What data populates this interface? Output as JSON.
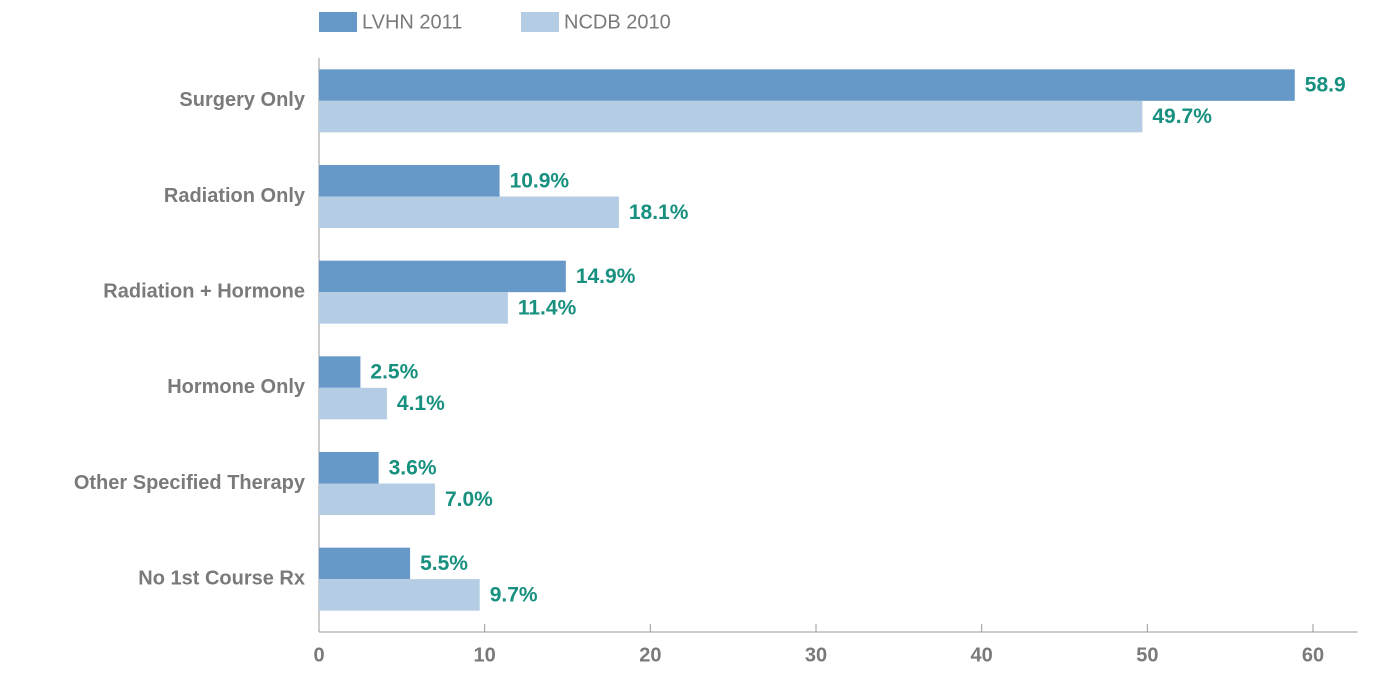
{
  "chart_data": {
    "type": "bar",
    "orientation": "horizontal",
    "categories": [
      "Surgery Only",
      "Radiation Only",
      "Radiation + Hormone",
      "Hormone Only",
      "Other Specified Therapy",
      "No 1st Course Rx"
    ],
    "series": [
      {
        "name": "LVHN 2011",
        "color": "#6699c8",
        "values": [
          58.9,
          10.9,
          14.9,
          2.5,
          3.6,
          5.5
        ],
        "value_labels": [
          "58.9",
          "10.9%",
          "14.9%",
          "2.5%",
          "3.6%",
          "5.5%"
        ]
      },
      {
        "name": "NCDB 2010",
        "color": "#b4cce4",
        "values": [
          49.7,
          18.1,
          11.4,
          4.1,
          7.0,
          9.7
        ],
        "value_labels": [
          "49.7%",
          "18.1%",
          "11.4%",
          "4.1%",
          "7.0%",
          "9.7%"
        ]
      }
    ],
    "label_color": "#17907f",
    "xlim": [
      0,
      62.7
    ],
    "xticks": [
      0,
      10,
      20,
      30,
      40,
      50,
      60
    ]
  }
}
